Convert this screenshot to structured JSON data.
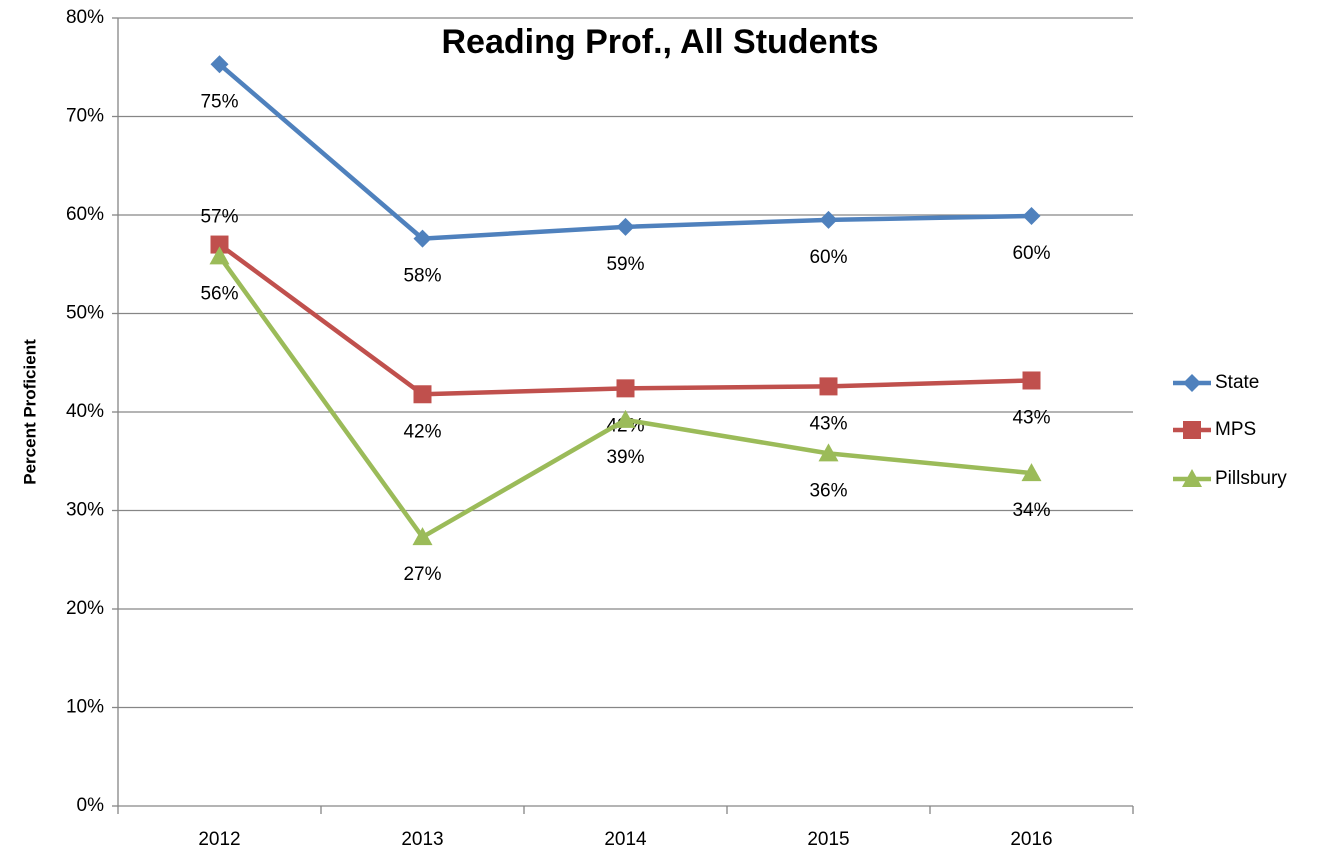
{
  "chart_data": {
    "type": "line",
    "title": "Reading Prof., All Students",
    "y_label": "Percent Proficient",
    "categories": [
      "2012",
      "2013",
      "2014",
      "2015",
      "2016"
    ],
    "ylim": [
      0,
      80
    ],
    "yticks": [
      {
        "value": 0,
        "label": "0%"
      },
      {
        "value": 10,
        "label": "10%"
      },
      {
        "value": 20,
        "label": "20%"
      },
      {
        "value": 30,
        "label": "30%"
      },
      {
        "value": 40,
        "label": "40%"
      },
      {
        "value": 50,
        "label": "50%"
      },
      {
        "value": 60,
        "label": "60%"
      },
      {
        "value": 70,
        "label": "70%"
      },
      {
        "value": 80,
        "label": "80%"
      }
    ],
    "grid": true,
    "legend": "right",
    "series": [
      {
        "name": "State",
        "color": "#4f81bd",
        "marker": "diamond",
        "values": [
          75.3,
          57.6,
          58.8,
          59.5,
          59.9
        ],
        "value_labels": [
          "75%",
          "58%",
          "59%",
          "60%",
          "60%"
        ]
      },
      {
        "name": "MPS",
        "color": "#c0504d",
        "marker": "square",
        "values": [
          57.0,
          41.8,
          42.4,
          42.6,
          43.2
        ],
        "value_labels": [
          "57%",
          "42%",
          "42%",
          "43%",
          "43%"
        ]
      },
      {
        "name": "Pillsbury",
        "color": "#9bbb59",
        "marker": "triangle",
        "values": [
          55.8,
          27.3,
          39.2,
          35.8,
          33.8
        ],
        "value_labels": [
          "56%",
          "27%",
          "39%",
          "36%",
          "34%"
        ]
      }
    ]
  }
}
